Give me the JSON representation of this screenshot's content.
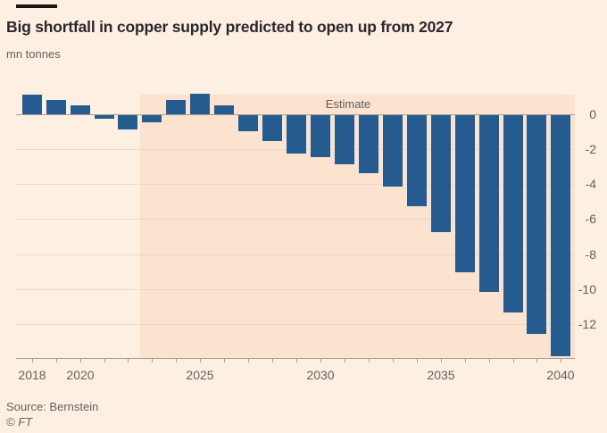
{
  "header": {
    "title": "Big shortfall in copper supply predicted to open up from 2027",
    "unit_label": "mn tonnes"
  },
  "footer": {
    "source": "Source: Bernstein",
    "copyright": "© FT"
  },
  "chart_data": {
    "type": "bar",
    "title": "Big shortfall in copper supply predicted to open up from 2027",
    "ylabel": "mn tonnes",
    "xlabel": "",
    "categories": [
      2018,
      2019,
      2020,
      2021,
      2022,
      2023,
      2024,
      2025,
      2026,
      2027,
      2028,
      2029,
      2030,
      2031,
      2032,
      2033,
      2034,
      2035,
      2036,
      2037,
      2038,
      2039,
      2040
    ],
    "values": [
      1.1,
      0.8,
      0.5,
      -0.2,
      -0.8,
      -0.4,
      0.8,
      1.2,
      0.5,
      -0.9,
      -1.5,
      -2.2,
      -2.4,
      -2.8,
      -3.3,
      -4.1,
      -5.2,
      -6.7,
      -9.0,
      -10.1,
      -11.3,
      -12.5,
      -13.8
    ],
    "estimate": {
      "label": "Estimate",
      "start_year": 2023
    },
    "x_axis_labeled_years": [
      2018,
      2020,
      2025,
      2030,
      2035,
      2040
    ],
    "y_ticks": [
      0,
      -2,
      -4,
      -6,
      -8,
      -10,
      -12
    ],
    "ylim": [
      1.3,
      -14
    ],
    "grid": true,
    "legend": "none",
    "colors": {
      "bar": "#255b8e",
      "background": "#fdf0e3",
      "estimate_background": "#fbe3d0",
      "gridline": "#f1d7c3",
      "zero_line": "#a59d94",
      "axis_line": "#a59d94",
      "muted_text": "#66605c",
      "title_text": "#2b272e",
      "slug": "#181512"
    }
  }
}
